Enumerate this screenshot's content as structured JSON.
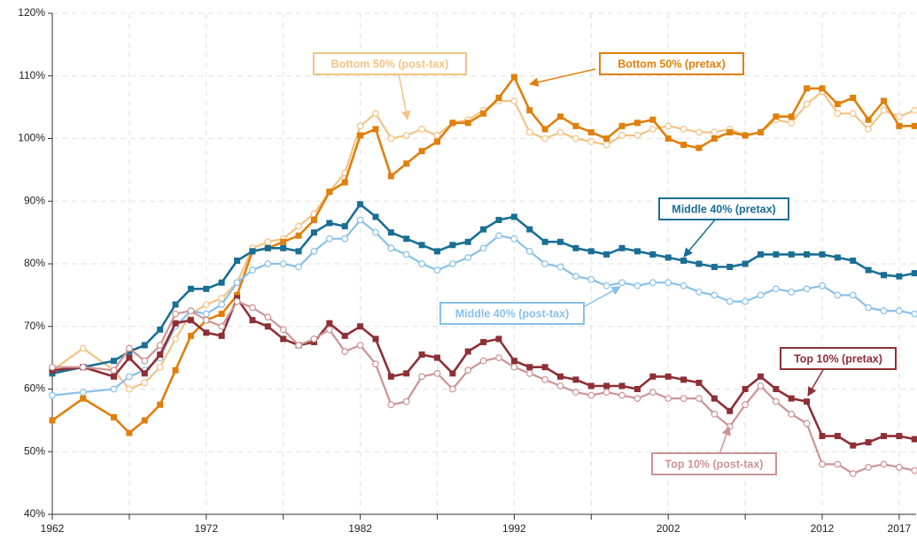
{
  "chart_data": {
    "type": "line",
    "x": [
      1962,
      1964,
      1966,
      1967,
      1968,
      1969,
      1970,
      1971,
      1972,
      1973,
      1974,
      1975,
      1976,
      1977,
      1978,
      1979,
      1980,
      1981,
      1982,
      1983,
      1984,
      1985,
      1986,
      1987,
      1988,
      1989,
      1990,
      1991,
      1992,
      1993,
      1994,
      1995,
      1996,
      1997,
      1998,
      1999,
      2000,
      2001,
      2002,
      2003,
      2004,
      2005,
      2006,
      2007,
      2008,
      2009,
      2010,
      2011,
      2012,
      2013,
      2014,
      2015,
      2016,
      2017,
      2018
    ],
    "xlim": [
      1962,
      2018.1
    ],
    "xticks": [
      1962,
      1972,
      1982,
      1992,
      2002,
      2012,
      2017
    ],
    "xminorticks": [
      1967,
      1977,
      1987,
      1997,
      2007
    ],
    "ylim": [
      40,
      120
    ],
    "yticks": [
      {
        "value": 40,
        "label": "40%"
      },
      {
        "value": 50,
        "label": "50%"
      },
      {
        "value": 60,
        "label": "60%"
      },
      {
        "value": 70,
        "label": "70%"
      },
      {
        "value": 80,
        "label": "80%"
      },
      {
        "value": 90,
        "label": "90%"
      },
      {
        "value": 100,
        "label": "100%"
      },
      {
        "value": 110,
        "label": "110%"
      },
      {
        "value": 120,
        "label": "120%"
      }
    ],
    "grid": true,
    "series": [
      {
        "name": "Bottom 50% (post-tax)",
        "color": "#f3c385",
        "marker": "circle",
        "values": [
          63,
          66.5,
          63,
          60,
          61,
          63.5,
          68,
          72,
          73.5,
          74.5,
          77,
          82.5,
          83.5,
          84,
          86,
          88,
          91.5,
          94.5,
          102,
          104,
          100,
          100.5,
          101.5,
          100.5,
          102.5,
          103,
          104.5,
          106,
          106,
          101,
          100,
          101,
          100,
          99.5,
          99,
          100.5,
          100.5,
          101.5,
          102,
          101.5,
          101,
          101,
          101.5,
          100.5,
          101,
          103,
          102.5,
          105.5,
          107.5,
          104,
          104,
          101.5,
          104.5,
          103.5,
          104.5
        ]
      },
      {
        "name": "Bottom 50% (pretax)",
        "color": "#e07f0a",
        "marker": "square",
        "values": [
          55,
          58.5,
          55.5,
          53,
          55,
          57.5,
          63,
          68.5,
          71,
          72,
          75,
          82,
          82.5,
          83.5,
          84.5,
          87,
          91.5,
          93,
          100.5,
          101.5,
          94,
          96,
          98,
          99.5,
          102.5,
          102.5,
          104,
          106.5,
          109.8,
          104.5,
          101.5,
          103.5,
          102,
          101,
          100,
          102,
          102.5,
          103,
          100,
          99,
          98.5,
          100,
          101,
          100.5,
          101,
          103.5,
          103.5,
          108,
          108,
          105.5,
          106.5,
          103,
          106,
          102,
          102
        ]
      },
      {
        "name": "Middle 40% (pretax)",
        "color": "#1a6e94",
        "marker": "square",
        "values": [
          62.5,
          63.5,
          64.5,
          66,
          67,
          69.5,
          73.5,
          76,
          76,
          77,
          80.5,
          82,
          82.5,
          82.5,
          82,
          85,
          86.5,
          86,
          89.5,
          87.5,
          85,
          84,
          83,
          82,
          83,
          83.5,
          85.5,
          87,
          87.5,
          85.5,
          83.5,
          83.5,
          82.5,
          82,
          81.5,
          82.5,
          82,
          81.5,
          81,
          80.5,
          80,
          79.5,
          79.5,
          80,
          81.5,
          81.5,
          81.5,
          81.5,
          81.5,
          81,
          80.5,
          79,
          78.2,
          78,
          78.5
        ]
      },
      {
        "name": "Middle 40% (post-tax)",
        "color": "#88c0e8",
        "marker": "circle",
        "values": [
          59,
          59.5,
          60,
          62,
          63,
          65,
          70,
          72.5,
          72,
          73.5,
          77,
          79,
          80,
          80,
          79.5,
          82,
          84,
          84,
          87,
          85,
          82.5,
          81.5,
          80,
          79,
          80,
          81,
          82.5,
          84.5,
          84,
          82,
          80,
          79.5,
          78,
          77.5,
          76.5,
          77,
          76.5,
          77,
          77,
          76.5,
          75.5,
          75,
          74,
          74,
          75,
          76,
          75.5,
          76,
          76.5,
          75,
          75,
          73,
          72.5,
          72.5,
          72
        ]
      },
      {
        "name": "Top 10% (pretax)",
        "color": "#8e2f36",
        "marker": "square",
        "values": [
          63,
          63.5,
          62,
          65,
          62.5,
          65.5,
          70.5,
          71,
          69,
          68.5,
          74.5,
          71,
          70,
          68,
          67,
          67.5,
          70.5,
          68.5,
          70,
          68,
          62,
          62.5,
          65.5,
          65,
          62.5,
          66,
          67.5,
          68,
          64.5,
          63.5,
          63.5,
          62,
          61.5,
          60.5,
          60.5,
          60.5,
          60,
          62,
          62,
          61.5,
          61,
          58.5,
          56.5,
          60,
          62,
          60,
          58.5,
          58,
          52.5,
          52.5,
          51,
          51.5,
          52.5,
          52.5,
          52
        ]
      },
      {
        "name": "Top 10% (post-tax)",
        "color": "#cc9494",
        "marker": "circle",
        "values": [
          63.5,
          63.5,
          63,
          66.5,
          64.5,
          67,
          72,
          72.5,
          71,
          70,
          74,
          73,
          71.5,
          69.5,
          67,
          68,
          69.5,
          66,
          67,
          64,
          57.5,
          58,
          62,
          62.5,
          60,
          63,
          64.5,
          65,
          63.5,
          62.5,
          61.5,
          60.5,
          59.5,
          59,
          59.5,
          59,
          58.5,
          59.5,
          58.5,
          58.5,
          58.5,
          56,
          54,
          57.5,
          60.5,
          58,
          56,
          54.5,
          48,
          48,
          46.5,
          47.5,
          48,
          47.5,
          47
        ]
      }
    ]
  }
}
